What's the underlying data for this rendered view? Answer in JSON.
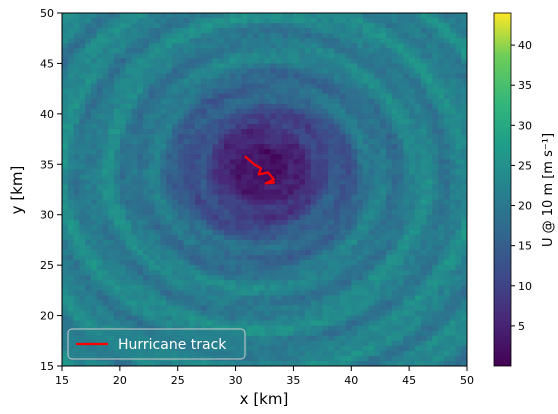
{
  "chart_data": {
    "type": "heatmap",
    "xlabel": "x [km]",
    "ylabel": "y [km]",
    "xlim": [
      15,
      50
    ],
    "ylim": [
      15,
      50
    ],
    "xticks": [
      15,
      20,
      25,
      30,
      35,
      40,
      45,
      50
    ],
    "yticks": [
      15,
      20,
      25,
      30,
      35,
      40,
      45,
      50
    ],
    "field": {
      "center": [
        32.5,
        34.5
      ],
      "min_value": 1,
      "max_value": 44,
      "colormap": "viridis",
      "pattern": "cyclonic spiral bands of 10 m wind speed; calm eye near center, 15-25 m/s in outer rings, gusts above 35 m/s scattered"
    },
    "colorbar": {
      "label": "U @ 10 m  [m s⁻¹]",
      "range": [
        0,
        44
      ],
      "ticks": [
        5,
        10,
        15,
        20,
        25,
        30,
        35,
        40
      ]
    },
    "series": [
      {
        "name": "Hurricane track",
        "color": "#ff0000",
        "x": [
          30.8,
          31.6,
          32.2,
          32.0,
          32.8,
          33.3,
          32.6,
          33.4
        ],
        "y": [
          35.8,
          35.0,
          34.6,
          34.0,
          34.2,
          33.5,
          33.1,
          33.2
        ]
      }
    ],
    "legend": {
      "position": "bottom-left",
      "label": "Hurricane track"
    },
    "grid": false
  }
}
